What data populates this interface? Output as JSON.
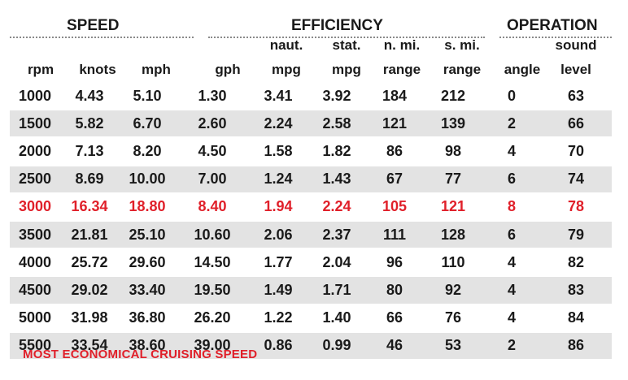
{
  "groups": {
    "speed": "SPEED",
    "efficiency": "EFFICIENCY",
    "operation": "OPERATION"
  },
  "columns": {
    "rpm": {
      "top": "",
      "bottom": "rpm"
    },
    "knots": {
      "top": "",
      "bottom": "knots"
    },
    "mph": {
      "top": "",
      "bottom": "mph"
    },
    "gph": {
      "top": "",
      "bottom": "gph"
    },
    "naut_mpg": {
      "top": "naut.",
      "bottom": "mpg"
    },
    "stat_mpg": {
      "top": "stat.",
      "bottom": "mpg"
    },
    "nmi_range": {
      "top": "n. mi.",
      "bottom": "range"
    },
    "smi_range": {
      "top": "s. mi.",
      "bottom": "range"
    },
    "angle": {
      "top": "",
      "bottom": "angle"
    },
    "sound": {
      "top": "sound",
      "bottom": "level"
    }
  },
  "rows": [
    [
      "1000",
      "4.43",
      "5.10",
      "1.30",
      "3.41",
      "3.92",
      "184",
      "212",
      "0",
      "63"
    ],
    [
      "1500",
      "5.82",
      "6.70",
      "2.60",
      "2.24",
      "2.58",
      "121",
      "139",
      "2",
      "66"
    ],
    [
      "2000",
      "7.13",
      "8.20",
      "4.50",
      "1.58",
      "1.82",
      "86",
      "98",
      "4",
      "70"
    ],
    [
      "2500",
      "8.69",
      "10.00",
      "7.00",
      "1.24",
      "1.43",
      "67",
      "77",
      "6",
      "74"
    ],
    [
      "3000",
      "16.34",
      "18.80",
      "8.40",
      "1.94",
      "2.24",
      "105",
      "121",
      "8",
      "78"
    ],
    [
      "3500",
      "21.81",
      "25.10",
      "10.60",
      "2.06",
      "2.37",
      "111",
      "128",
      "6",
      "79"
    ],
    [
      "4000",
      "25.72",
      "29.60",
      "14.50",
      "1.77",
      "2.04",
      "96",
      "110",
      "4",
      "82"
    ],
    [
      "4500",
      "29.02",
      "33.40",
      "19.50",
      "1.49",
      "1.71",
      "80",
      "92",
      "4",
      "83"
    ],
    [
      "5000",
      "31.98",
      "36.80",
      "26.20",
      "1.22",
      "1.40",
      "66",
      "76",
      "4",
      "84"
    ],
    [
      "5500",
      "33.54",
      "38.60",
      "39.00",
      "0.86",
      "0.99",
      "46",
      "53",
      "2",
      "86"
    ]
  ],
  "highlight_row_rpm": "3000",
  "highlight_color": "#e0202a",
  "stripe_color": "#e3e3e3",
  "footnote": "MOST ECONOMICAL CRUISING SPEED"
}
